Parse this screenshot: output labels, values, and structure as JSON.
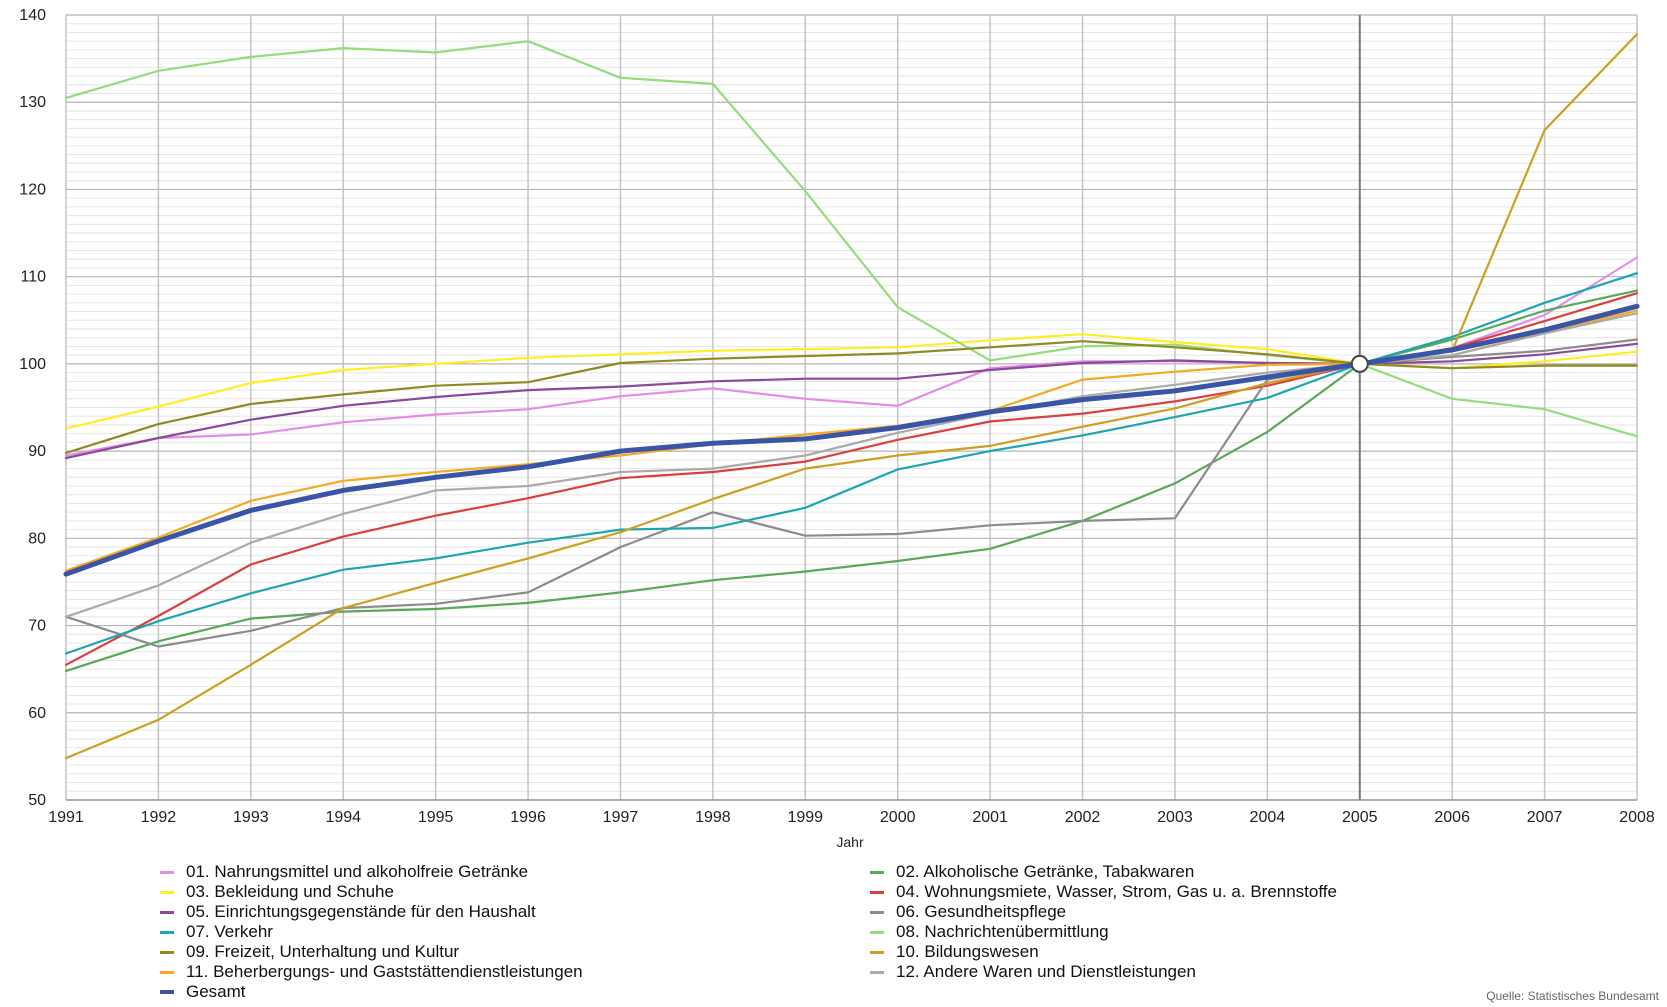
{
  "chart_data": {
    "type": "line",
    "title": "",
    "xlabel": "Jahr",
    "ylabel": "",
    "ylim": [
      50,
      140
    ],
    "yticks": [
      50,
      60,
      70,
      80,
      90,
      100,
      110,
      120,
      130,
      140
    ],
    "xlim": [
      1991,
      2008
    ],
    "x": [
      1991,
      1992,
      1993,
      1994,
      1995,
      1996,
      1997,
      1998,
      1999,
      2000,
      2001,
      2002,
      2003,
      2004,
      2005,
      2006,
      2007,
      2008
    ],
    "grid": true,
    "reference_year": 2005,
    "legend_placement": "bottom",
    "series": [
      {
        "name": "01. Nahrungsmittel und alkoholfreie Getränke",
        "color": "#e58ce8",
        "values": [
          89.5,
          91.5,
          91.9,
          93.3,
          94.2,
          94.8,
          96.3,
          97.2,
          96.0,
          95.2,
          99.5,
          100.3,
          100.3,
          100.1,
          100,
          101.8,
          105.6,
          112.2
        ]
      },
      {
        "name": "02. Alkoholische Getränke, Tabakwaren",
        "color": "#5aa85a",
        "values": [
          64.8,
          68.2,
          70.8,
          71.6,
          71.9,
          72.6,
          73.8,
          75.2,
          76.2,
          77.4,
          78.8,
          82.0,
          86.3,
          92.2,
          100,
          102.8,
          106.1,
          108.4
        ]
      },
      {
        "name": "03. Bekleidung und Schuhe",
        "color": "#ffee22",
        "values": [
          92.6,
          95.1,
          97.8,
          99.3,
          100.0,
          100.7,
          101.1,
          101.5,
          101.7,
          101.9,
          102.7,
          103.4,
          102.5,
          101.7,
          100,
          99.5,
          100.3,
          101.4
        ]
      },
      {
        "name": "04. Wohnungsmiete, Wasser, Strom, Gas u. a. Brennstoffe",
        "color": "#d94040",
        "values": [
          65.5,
          71.1,
          77.0,
          80.2,
          82.6,
          84.6,
          86.9,
          87.6,
          88.8,
          91.3,
          93.4,
          94.3,
          95.7,
          97.5,
          100,
          101.8,
          104.9,
          108.1
        ]
      },
      {
        "name": "05. Einrichtungsgegenstände für den Haushalt",
        "color": "#8a4a9a",
        "values": [
          89.2,
          91.5,
          93.6,
          95.2,
          96.2,
          97.0,
          97.4,
          98.0,
          98.3,
          98.3,
          99.3,
          100.1,
          100.4,
          100.1,
          100,
          100.3,
          101.1,
          102.3
        ]
      },
      {
        "name": "06. Gesundheitspflege",
        "color": "#8c8c8c",
        "values": [
          71.0,
          67.6,
          69.4,
          72.0,
          72.5,
          73.8,
          79.0,
          83.0,
          80.3,
          80.5,
          81.5,
          82.0,
          82.3,
          98.2,
          100,
          100.8,
          101.5,
          102.8
        ]
      },
      {
        "name": "07. Verkehr",
        "color": "#1ea6b0",
        "values": [
          66.8,
          70.5,
          73.7,
          76.4,
          77.7,
          79.5,
          81.0,
          81.2,
          83.5,
          87.9,
          90.0,
          91.8,
          93.9,
          96.1,
          100,
          103.1,
          107.0,
          110.4
        ]
      },
      {
        "name": "08. Nachrichtenübermittlung",
        "color": "#94dc7c",
        "values": [
          130.5,
          133.6,
          135.2,
          136.2,
          135.7,
          137.0,
          132.8,
          132.1,
          119.8,
          106.5,
          100.4,
          102.0,
          102.2,
          101.0,
          100,
          96.0,
          94.8,
          91.7
        ]
      },
      {
        "name": "09. Freizeit, Unterhaltung und Kultur",
        "color": "#8f8a22",
        "values": [
          89.8,
          93.1,
          95.4,
          96.5,
          97.5,
          97.9,
          100.1,
          100.6,
          100.9,
          101.2,
          101.9,
          102.6,
          101.9,
          101.1,
          100,
          99.5,
          99.8,
          99.8
        ]
      },
      {
        "name": "10. Bildungswesen",
        "color": "#cca020",
        "values": [
          54.8,
          59.2,
          65.5,
          72.0,
          74.9,
          77.7,
          80.7,
          84.5,
          88.0,
          89.5,
          90.6,
          92.8,
          94.9,
          97.8,
          100,
          101.5,
          126.8,
          137.8
        ]
      },
      {
        "name": "11. Beherbergungs- und Gaststättendienstleistungen",
        "color": "#f5a820",
        "values": [
          76.3,
          80.1,
          84.3,
          86.6,
          87.6,
          88.5,
          89.5,
          90.8,
          91.9,
          92.9,
          94.6,
          98.2,
          99.1,
          99.9,
          100,
          101.0,
          103.6,
          106.1
        ]
      },
      {
        "name": "12. Andere Waren und Dienstleistungen",
        "color": "#aaaaaa",
        "values": [
          71.0,
          74.6,
          79.5,
          82.8,
          85.5,
          86.0,
          87.6,
          88.0,
          89.5,
          92.1,
          94.3,
          96.3,
          97.6,
          99.0,
          100,
          101.0,
          103.5,
          105.8
        ]
      },
      {
        "name": "Gesamt",
        "color": "#3a55a5",
        "bold": true,
        "values": [
          75.9,
          79.7,
          83.2,
          85.5,
          87.0,
          88.2,
          90.0,
          90.9,
          91.4,
          92.7,
          94.5,
          95.9,
          96.9,
          98.5,
          100,
          101.6,
          103.9,
          106.6
        ]
      }
    ]
  },
  "source_text": "Quelle: Statistisches Bundesamt"
}
